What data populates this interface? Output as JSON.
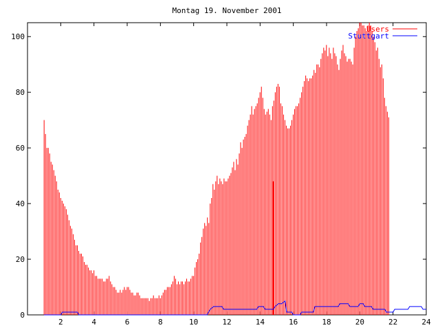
{
  "chart_data": {
    "type": "bar",
    "title": "Montag 19. November 2001",
    "xlabel": "",
    "ylabel": "",
    "xlim": [
      0,
      24
    ],
    "ylim": [
      0,
      105
    ],
    "xticks": [
      2,
      4,
      6,
      8,
      10,
      12,
      14,
      16,
      18,
      20,
      22,
      24
    ],
    "yticks": [
      0,
      20,
      40,
      60,
      80,
      100
    ],
    "grid": false,
    "legend_position": "top-right",
    "series": [
      {
        "name": "Users",
        "type": "impulses",
        "color": "#ff0000",
        "interval_hours": 0.0833,
        "start_hour": 1.0,
        "values": [
          70,
          65,
          60,
          60,
          58,
          55,
          54,
          52,
          50,
          48,
          45,
          44,
          42,
          41,
          40,
          39,
          38,
          36,
          34,
          32,
          31,
          29,
          27,
          25,
          25,
          23,
          22,
          22,
          21,
          19,
          18,
          18,
          17,
          16,
          16,
          15,
          16,
          14,
          14,
          13,
          13,
          13,
          13,
          12,
          12,
          13,
          13,
          14,
          12,
          11,
          10,
          10,
          9,
          8,
          8,
          9,
          8,
          9,
          10,
          9,
          10,
          10,
          9,
          8,
          8,
          7,
          7,
          8,
          8,
          7,
          6,
          6,
          6,
          6,
          6,
          6,
          5,
          6,
          6,
          7,
          6,
          6,
          6,
          7,
          6,
          7,
          8,
          9,
          9,
          10,
          10,
          10,
          11,
          12,
          14,
          13,
          11,
          12,
          11,
          12,
          12,
          11,
          12,
          13,
          12,
          12,
          13,
          14,
          14,
          17,
          19,
          20,
          22,
          26,
          28,
          31,
          33,
          32,
          35,
          33,
          40,
          42,
          47,
          45,
          48,
          50,
          47,
          49,
          48,
          47,
          49,
          48,
          48,
          49,
          50,
          51,
          53,
          55,
          52,
          56,
          54,
          58,
          62,
          60,
          63,
          64,
          65,
          68,
          70,
          72,
          75,
          72,
          74,
          75,
          76,
          78,
          80,
          82,
          78,
          74,
          72,
          73,
          74,
          72,
          70,
          75,
          77,
          80,
          82,
          83,
          82,
          76,
          75,
          72,
          70,
          68,
          67,
          67,
          68,
          70,
          72,
          74,
          75,
          75,
          76,
          78,
          80,
          82,
          84,
          86,
          85,
          84,
          85,
          85,
          86,
          88,
          87,
          90,
          90,
          89,
          92,
          94,
          96,
          95,
          97,
          93,
          96,
          94,
          92,
          96,
          94,
          93,
          90,
          88,
          92,
          95,
          97,
          94,
          93,
          91,
          92,
          92,
          91,
          90,
          96,
          100,
          102,
          103,
          105,
          105,
          104,
          104,
          103,
          102,
          104,
          105,
          104,
          102,
          100,
          98,
          95,
          96,
          92,
          89,
          90,
          85,
          78,
          75,
          73,
          71
        ],
        "spikes": [
          {
            "x": 14.8,
            "value": 48
          }
        ]
      },
      {
        "name": "Stuttgart",
        "type": "line",
        "color": "#0000ff",
        "points": [
          [
            1.0,
            0
          ],
          [
            2.0,
            0
          ],
          [
            2.1,
            1
          ],
          [
            3.0,
            1
          ],
          [
            3.1,
            0
          ],
          [
            10.8,
            0
          ],
          [
            11.0,
            2
          ],
          [
            11.2,
            3
          ],
          [
            11.7,
            3
          ],
          [
            11.8,
            2
          ],
          [
            13.8,
            2
          ],
          [
            13.9,
            3
          ],
          [
            14.2,
            3
          ],
          [
            14.3,
            2
          ],
          [
            14.8,
            2
          ],
          [
            14.9,
            3
          ],
          [
            15.1,
            4
          ],
          [
            15.3,
            4
          ],
          [
            15.5,
            5
          ],
          [
            15.6,
            1
          ],
          [
            15.9,
            1
          ],
          [
            16.0,
            0
          ],
          [
            16.4,
            0
          ],
          [
            16.5,
            1
          ],
          [
            17.2,
            1
          ],
          [
            17.3,
            3
          ],
          [
            18.7,
            3
          ],
          [
            18.8,
            4
          ],
          [
            19.3,
            4
          ],
          [
            19.4,
            3
          ],
          [
            19.9,
            3
          ],
          [
            20.0,
            4
          ],
          [
            20.2,
            4
          ],
          [
            20.3,
            3
          ],
          [
            20.7,
            3
          ],
          [
            20.8,
            2
          ],
          [
            21.5,
            2
          ],
          [
            21.6,
            1
          ],
          [
            22.0,
            1
          ],
          [
            22.1,
            2
          ],
          [
            22.9,
            2
          ],
          [
            23.0,
            3
          ],
          [
            23.7,
            3
          ],
          [
            23.8,
            2
          ],
          [
            24.0,
            2
          ]
        ]
      }
    ]
  }
}
